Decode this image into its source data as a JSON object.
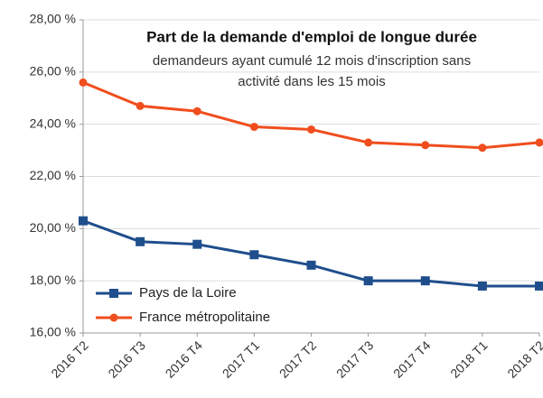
{
  "chart_data": {
    "type": "line",
    "title": "Part de la demande d'emploi de longue durée",
    "subtitle": [
      "demandeurs ayant cumulé 12 mois d'inscription sans",
      "activité dans les 15 mois"
    ],
    "categories": [
      "2016 T2",
      "2016 T3",
      "2016 T4",
      "2017 T1",
      "2017 T2",
      "2017 T3",
      "2017 T4",
      "2018 T1",
      "2018 T2"
    ],
    "series": [
      {
        "name": "Pays de la Loire",
        "color": "#1f4e8c",
        "marker": "square",
        "values": [
          20.3,
          19.5,
          19.4,
          19.0,
          18.6,
          18.0,
          18.0,
          17.8,
          17.8
        ]
      },
      {
        "name": "France métropolitaine",
        "color": "#f04e1e",
        "marker": "circle",
        "values": [
          25.6,
          24.7,
          24.5,
          23.9,
          23.8,
          23.3,
          23.2,
          23.1,
          23.3
        ]
      }
    ],
    "ylim": [
      16,
      28
    ],
    "yticks": [
      {
        "value": 16,
        "label": "16,00 %"
      },
      {
        "value": 18,
        "label": "18,00 %"
      },
      {
        "value": 20,
        "label": "20,00 %"
      },
      {
        "value": 22,
        "label": "22,00 %"
      },
      {
        "value": 24,
        "label": "24,00 %"
      },
      {
        "value": 26,
        "label": "26,00 %"
      },
      {
        "value": 28,
        "label": "28,00 %"
      }
    ],
    "grid": true,
    "legend": "bottom-left"
  }
}
